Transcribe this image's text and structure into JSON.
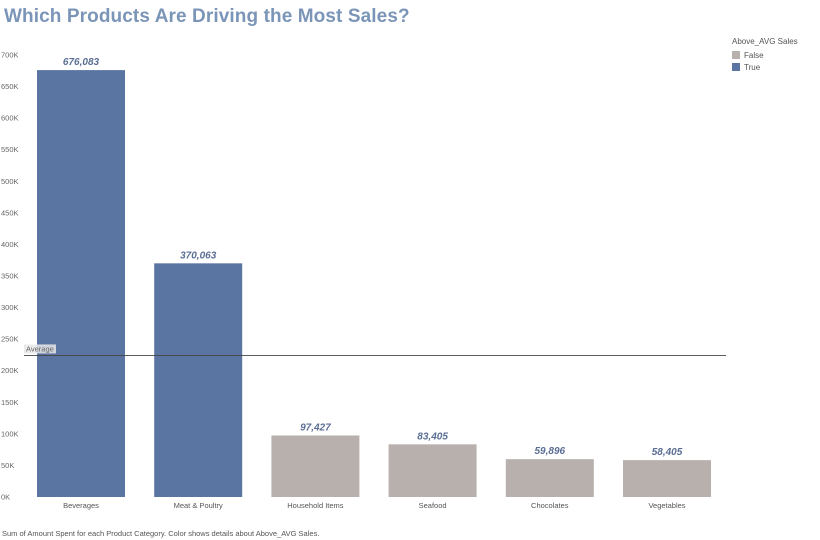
{
  "chart_data": {
    "type": "bar",
    "title": "Which Products Are Driving the Most Sales?",
    "categories": [
      "Beverages",
      "Meat & Poultry",
      "Household Items",
      "Seafood",
      "Chocolates",
      "Vegetables"
    ],
    "values": [
      676083,
      370063,
      97427,
      83405,
      59896,
      58405
    ],
    "value_labels": [
      "676,083",
      "370,063",
      "97,427",
      "83,405",
      "59,896",
      "58,405"
    ],
    "above_avg": [
      true,
      true,
      false,
      false,
      false,
      false
    ],
    "ylim": [
      0,
      700000
    ],
    "yticks": [
      0,
      50000,
      100000,
      150000,
      200000,
      250000,
      300000,
      350000,
      400000,
      450000,
      500000,
      550000,
      600000,
      650000,
      700000
    ],
    "ytick_labels": [
      "0K",
      "50K",
      "100K",
      "150K",
      "200K",
      "250K",
      "300K",
      "350K",
      "400K",
      "450K",
      "500K",
      "550K",
      "600K",
      "650K",
      "700K"
    ],
    "reference_line": {
      "label": "Average",
      "value": 224213
    },
    "legend": {
      "title": "Above_AVG Sales",
      "placement": "top-right",
      "items": [
        {
          "label": "False",
          "color": "#b8b0ac"
        },
        {
          "label": "True",
          "color": "#5b75a3"
        }
      ]
    },
    "colors": {
      "true": "#5b75a3",
      "false": "#b8b0ac",
      "title": "#7b95b8",
      "label": "#5b6e95"
    },
    "caption": "Sum of Amount Spent for each Product Category.  Color shows details about Above_AVG Sales."
  }
}
